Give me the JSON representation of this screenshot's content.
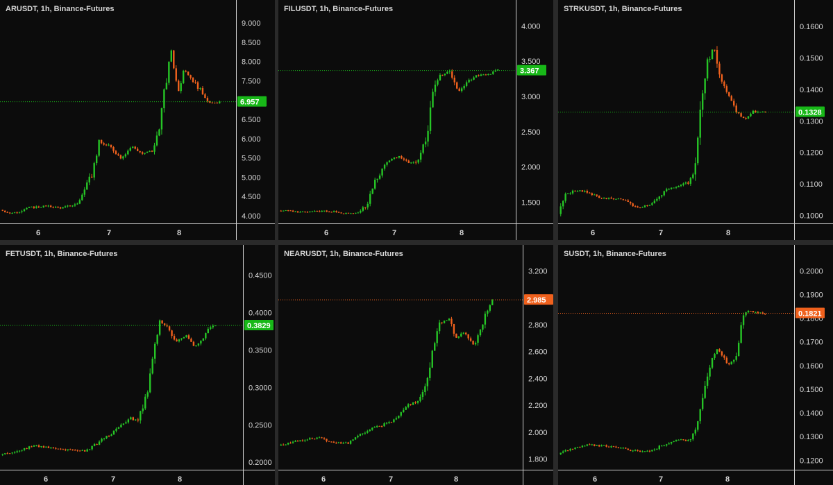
{
  "theme": {
    "background": "#0c0c0c",
    "up": "#26c526",
    "down": "#f0611d",
    "axis_text": "#d8d8d8"
  },
  "chart_data": [
    {
      "type": "candlestick",
      "title": "ARUSDT, 1h, Binance-Futures",
      "symbol": "ARUSDT",
      "interval": "1h",
      "exchange": "Binance-Futures",
      "x_ticks": [
        "6",
        "7",
        "8"
      ],
      "yticks": [
        "4.000",
        "4.500",
        "5.000",
        "5.500",
        "6.000",
        "6.500",
        "7.000",
        "7.500",
        "8.000",
        "8.500",
        "9.000"
      ],
      "ylim": [
        3.8,
        9.2
      ],
      "last_price": "6.957",
      "last_value": 6.957,
      "last_color": "#18b818",
      "path": [
        [
          0,
          4.15
        ],
        [
          0.06,
          4.05
        ],
        [
          0.12,
          4.2
        ],
        [
          0.2,
          4.25
        ],
        [
          0.28,
          4.2
        ],
        [
          0.35,
          4.3
        ],
        [
          0.38,
          4.6
        ],
        [
          0.42,
          5.1
        ],
        [
          0.45,
          5.9
        ],
        [
          0.5,
          5.8
        ],
        [
          0.55,
          5.5
        ],
        [
          0.6,
          5.8
        ],
        [
          0.65,
          5.6
        ],
        [
          0.7,
          5.7
        ],
        [
          0.73,
          6.5
        ],
        [
          0.76,
          7.6
        ],
        [
          0.78,
          8.3
        ],
        [
          0.81,
          7.2
        ],
        [
          0.84,
          7.8
        ],
        [
          0.88,
          7.5
        ],
        [
          0.92,
          7.2
        ],
        [
          0.96,
          6.9
        ],
        [
          1,
          6.95
        ]
      ]
    },
    {
      "type": "candlestick",
      "title": "FILUSDT, 1h, Binance-Futures",
      "symbol": "FILUSDT",
      "interval": "1h",
      "exchange": "Binance-Futures",
      "x_ticks": [
        "6",
        "7",
        "8"
      ],
      "yticks": [
        "1.500",
        "2.000",
        "2.500",
        "3.000",
        "3.500",
        "4.000"
      ],
      "ylim": [
        1.2,
        4.15
      ],
      "last_price": "3.367",
      "last_value": 3.367,
      "last_color": "#18b818",
      "path": [
        [
          0,
          1.38
        ],
        [
          0.12,
          1.36
        ],
        [
          0.22,
          1.38
        ],
        [
          0.3,
          1.34
        ],
        [
          0.36,
          1.35
        ],
        [
          0.4,
          1.45
        ],
        [
          0.44,
          1.8
        ],
        [
          0.5,
          2.1
        ],
        [
          0.55,
          2.15
        ],
        [
          0.6,
          2.05
        ],
        [
          0.64,
          2.1
        ],
        [
          0.68,
          2.5
        ],
        [
          0.7,
          3.0
        ],
        [
          0.73,
          3.3
        ],
        [
          0.78,
          3.35
        ],
        [
          0.82,
          3.05
        ],
        [
          0.86,
          3.2
        ],
        [
          0.9,
          3.3
        ],
        [
          0.95,
          3.3
        ],
        [
          1,
          3.37
        ]
      ]
    },
    {
      "type": "candlestick",
      "title": "STRKUSDT, 1h, Binance-Futures",
      "symbol": "STRKUSDT",
      "interval": "1h",
      "exchange": "Binance-Futures",
      "x_ticks": [
        "6",
        "7",
        "8"
      ],
      "yticks": [
        "0.1000",
        "0.1100",
        "0.1200",
        "0.1300",
        "0.1400",
        "0.1500",
        "0.1600"
      ],
      "ylim": [
        0.0975,
        0.1635
      ],
      "last_price": "0.1328",
      "last_value": 0.1328,
      "last_color": "#18b818",
      "path": [
        [
          0,
          0.1005
        ],
        [
          0.03,
          0.1065
        ],
        [
          0.08,
          0.108
        ],
        [
          0.14,
          0.1075
        ],
        [
          0.2,
          0.1055
        ],
        [
          0.26,
          0.1055
        ],
        [
          0.33,
          0.1045
        ],
        [
          0.38,
          0.1025
        ],
        [
          0.44,
          0.1035
        ],
        [
          0.48,
          0.1055
        ],
        [
          0.52,
          0.108
        ],
        [
          0.58,
          0.1095
        ],
        [
          0.63,
          0.1105
        ],
        [
          0.66,
          0.1135
        ],
        [
          0.69,
          0.134
        ],
        [
          0.72,
          0.148
        ],
        [
          0.75,
          0.1535
        ],
        [
          0.78,
          0.145
        ],
        [
          0.82,
          0.138
        ],
        [
          0.86,
          0.133
        ],
        [
          0.9,
          0.1305
        ],
        [
          0.94,
          0.133
        ],
        [
          1,
          0.1328
        ]
      ]
    },
    {
      "type": "candlestick",
      "title": "FETUSDT, 1h, Binance-Futures",
      "symbol": "FETUSDT",
      "interval": "1h",
      "exchange": "Binance-Futures",
      "x_ticks": [
        "6",
        "7",
        "8"
      ],
      "yticks": [
        "0.2000",
        "0.2500",
        "0.3000",
        "0.3500",
        "0.4000",
        "0.4500"
      ],
      "ylim": [
        0.19,
        0.47
      ],
      "last_price": "0.3829",
      "last_value": 0.3829,
      "last_color": "#18b818",
      "path": [
        [
          0,
          0.21
        ],
        [
          0.08,
          0.215
        ],
        [
          0.15,
          0.222
        ],
        [
          0.22,
          0.22
        ],
        [
          0.3,
          0.217
        ],
        [
          0.36,
          0.215
        ],
        [
          0.4,
          0.215
        ],
        [
          0.45,
          0.225
        ],
        [
          0.5,
          0.235
        ],
        [
          0.55,
          0.245
        ],
        [
          0.6,
          0.26
        ],
        [
          0.64,
          0.255
        ],
        [
          0.68,
          0.29
        ],
        [
          0.71,
          0.34
        ],
        [
          0.74,
          0.39
        ],
        [
          0.78,
          0.38
        ],
        [
          0.82,
          0.36
        ],
        [
          0.86,
          0.37
        ],
        [
          0.9,
          0.355
        ],
        [
          0.93,
          0.36
        ],
        [
          0.96,
          0.375
        ],
        [
          1,
          0.383
        ]
      ]
    },
    {
      "type": "candlestick",
      "title": "NEARUSDT, 1h, Binance-Futures",
      "symbol": "NEARUSDT",
      "interval": "1h",
      "exchange": "Binance-Futures",
      "x_ticks": [
        "6",
        "7",
        "8"
      ],
      "yticks": [
        "1.800",
        "2.000",
        "2.200",
        "2.400",
        "2.600",
        "2.800",
        "3.000",
        "3.200"
      ],
      "ylim": [
        1.72,
        3.28
      ],
      "last_price": "2.985",
      "last_value": 2.985,
      "last_color": "#f0611d",
      "path": [
        [
          0,
          1.9
        ],
        [
          0.08,
          1.93
        ],
        [
          0.18,
          1.96
        ],
        [
          0.26,
          1.92
        ],
        [
          0.33,
          1.92
        ],
        [
          0.38,
          1.98
        ],
        [
          0.44,
          2.03
        ],
        [
          0.5,
          2.06
        ],
        [
          0.55,
          2.1
        ],
        [
          0.6,
          2.2
        ],
        [
          0.64,
          2.22
        ],
        [
          0.68,
          2.3
        ],
        [
          0.72,
          2.6
        ],
        [
          0.75,
          2.8
        ],
        [
          0.8,
          2.85
        ],
        [
          0.83,
          2.7
        ],
        [
          0.87,
          2.75
        ],
        [
          0.91,
          2.65
        ],
        [
          0.94,
          2.72
        ],
        [
          0.97,
          2.9
        ],
        [
          1,
          2.98
        ]
      ]
    },
    {
      "type": "candlestick",
      "title": "SUSDT, 1h, Binance-Futures",
      "symbol": "SUSDT",
      "interval": "1h",
      "exchange": "Binance-Futures",
      "x_ticks": [
        "6",
        "7",
        "8"
      ],
      "yticks": [
        "0.1200",
        "0.1300",
        "0.1400",
        "0.1500",
        "0.1600",
        "0.1700",
        "0.1800",
        "0.1900",
        "0.2000"
      ],
      "ylim": [
        0.116,
        0.2045
      ],
      "last_price": "0.1821",
      "last_value": 0.1821,
      "last_color": "#f0611d",
      "path": [
        [
          0,
          0.1225
        ],
        [
          0.08,
          0.1255
        ],
        [
          0.15,
          0.1265
        ],
        [
          0.22,
          0.126
        ],
        [
          0.28,
          0.1255
        ],
        [
          0.34,
          0.1245
        ],
        [
          0.4,
          0.1235
        ],
        [
          0.46,
          0.1245
        ],
        [
          0.52,
          0.127
        ],
        [
          0.58,
          0.129
        ],
        [
          0.62,
          0.128
        ],
        [
          0.65,
          0.13
        ],
        [
          0.68,
          0.139
        ],
        [
          0.71,
          0.15
        ],
        [
          0.74,
          0.162
        ],
        [
          0.77,
          0.167
        ],
        [
          0.8,
          0.163
        ],
        [
          0.83,
          0.16
        ],
        [
          0.86,
          0.165
        ],
        [
          0.89,
          0.181
        ],
        [
          0.92,
          0.183
        ],
        [
          1,
          0.182
        ]
      ]
    }
  ]
}
